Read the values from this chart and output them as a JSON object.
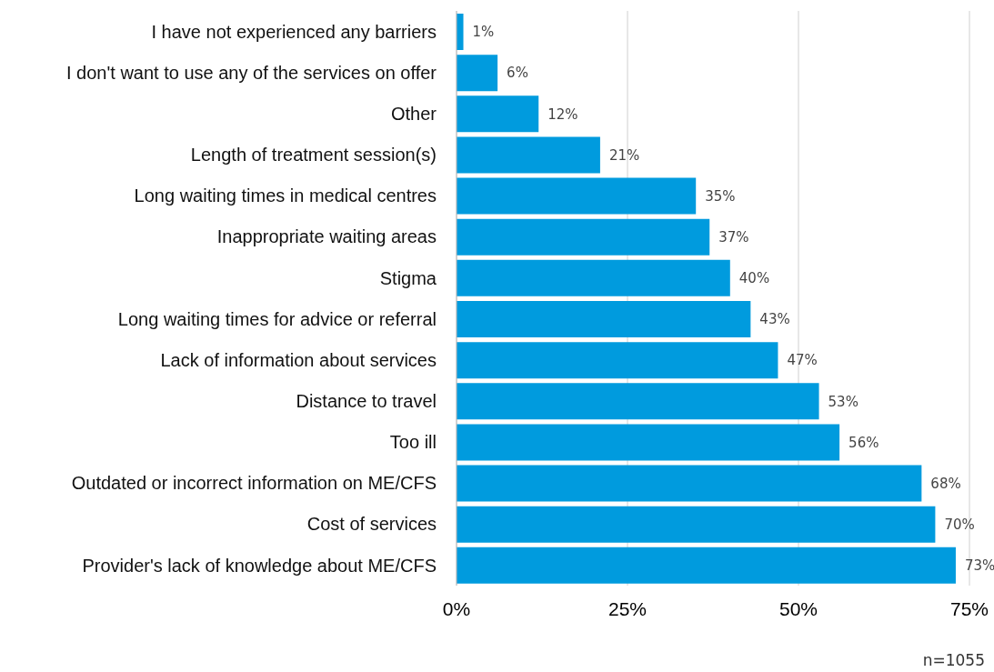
{
  "chart_data": {
    "type": "bar",
    "orientation": "horizontal",
    "categories": [
      "I have not experienced any barriers",
      "I don't want to use any of the services on offer",
      "Other",
      "Length of treatment session(s)",
      "Long waiting times in medical centres",
      "Inappropriate waiting areas",
      "Stigma",
      "Long waiting times for advice or referral",
      "Lack of information about services",
      "Distance to travel",
      "Too ill",
      "Outdated or incorrect information on ME/CFS",
      "Cost of services",
      "Provider's lack of knowledge about ME/CFS"
    ],
    "values": [
      1,
      6,
      12,
      21,
      35,
      37,
      40,
      43,
      47,
      53,
      56,
      68,
      70,
      73
    ],
    "value_labels": [
      "1%",
      "6%",
      "12%",
      "21%",
      "35%",
      "37%",
      "40%",
      "43%",
      "47%",
      "53%",
      "56%",
      "68%",
      "70%",
      "73%"
    ],
    "color": "#009bde",
    "xlim": [
      0,
      75
    ],
    "xticks": [
      {
        "value": 0,
        "label": "0%"
      },
      {
        "value": 25,
        "label": "25%"
      },
      {
        "value": 50,
        "label": "50%"
      },
      {
        "value": 75,
        "label": "75%"
      }
    ],
    "grid": "x",
    "annotations": [
      "n=1055"
    ]
  }
}
